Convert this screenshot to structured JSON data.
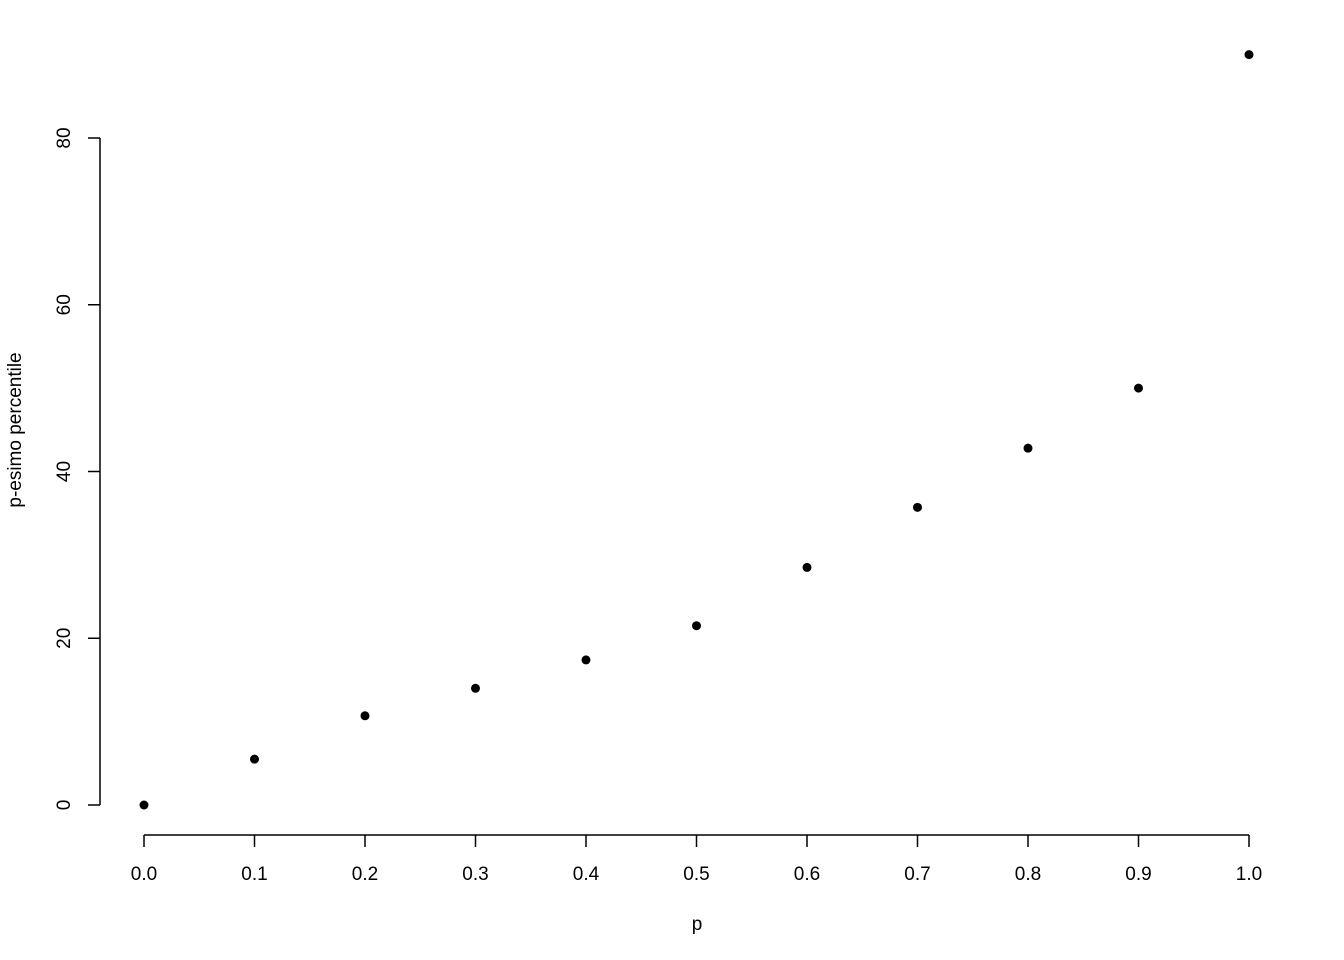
{
  "chart_data": {
    "type": "scatter",
    "title": "",
    "xlabel": "p",
    "ylabel": "p-esimo percentile",
    "x": [
      0.0,
      0.1,
      0.2,
      0.3,
      0.4,
      0.5,
      0.6,
      0.7,
      0.8,
      0.9,
      1.0
    ],
    "y": [
      0.0,
      5.5,
      10.7,
      14.0,
      17.4,
      21.5,
      28.5,
      35.7,
      42.8,
      50.0,
      90.0
    ],
    "xticks": [
      "0.0",
      "0.1",
      "0.2",
      "0.3",
      "0.4",
      "0.5",
      "0.6",
      "0.7",
      "0.8",
      "0.9",
      "1.0"
    ],
    "yticks": [
      "0",
      "20",
      "40",
      "60",
      "80"
    ],
    "xlim": [
      0,
      1
    ],
    "ylim": [
      0,
      90
    ],
    "grid": false,
    "point_color": "#000000"
  }
}
